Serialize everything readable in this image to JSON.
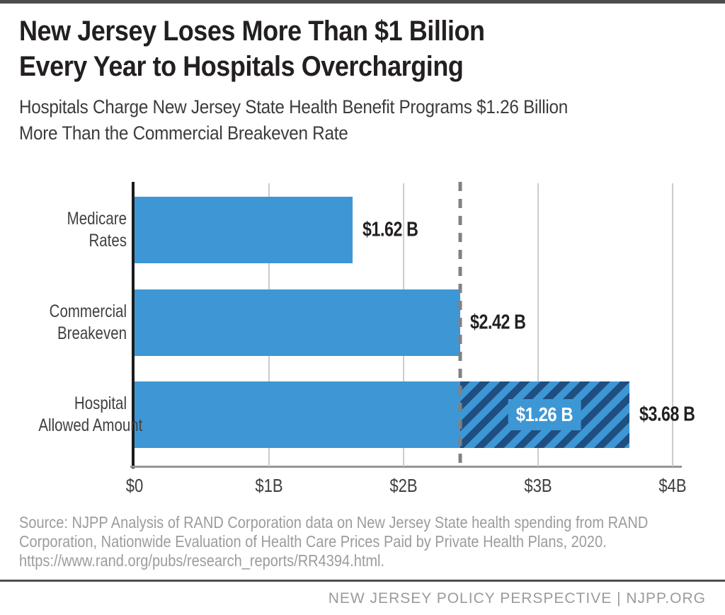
{
  "header": {
    "title_lines": [
      "New Jersey Loses More Than $1 Billion",
      "Every Year to Hospitals Overcharging"
    ],
    "subtitle_lines": [
      "Hospitals Charge New Jersey State Health Benefit Programs $1.26 Billion",
      "More Than the Commercial Breakeven Rate"
    ]
  },
  "chart_data": {
    "type": "bar",
    "orientation": "horizontal",
    "categories": [
      "Medicare Rates",
      "Commercial Breakeven",
      "Hospital Allowed Amount"
    ],
    "category_lines": [
      [
        "Medicare",
        "Rates"
      ],
      [
        "Commercial",
        "Breakeven"
      ],
      [
        "Hospital",
        "Allowed Amount"
      ]
    ],
    "values": [
      1.62,
      2.42,
      3.68
    ],
    "value_labels": [
      "$1.62 B",
      "$2.42 B",
      "$3.68 B"
    ],
    "unit": "billions USD",
    "xlim": [
      0,
      4
    ],
    "x_tick_values": [
      0,
      1,
      2,
      3,
      4
    ],
    "x_ticks": [
      "$0",
      "$1B",
      "$2B",
      "$3B",
      "$4B"
    ],
    "grid": true,
    "legend": "none",
    "reference_line": {
      "value": 2.42,
      "style": "dashed",
      "meaning": "Commercial Breakeven"
    },
    "overcharge_segment": {
      "from": 2.42,
      "to": 3.68,
      "label": "$1.26 B",
      "pattern": "diagonal-hatch"
    },
    "colors": {
      "bar": "#3e97d5",
      "hatch": "#1f4f81",
      "reference_line": "#7f8184",
      "gridline": "#cbcccd",
      "axis": "#1b1b1b",
      "overcharge_label_text": "#ffffff",
      "value_label_text": "#231f20"
    }
  },
  "source": {
    "lines": [
      "Source: NJPP Analysis of RAND Corporation data on New Jersey State health spending from RAND",
      "Corporation, Nationwide Evaluation of Health Care Prices Paid by Private Health Plans, 2020.",
      "https://www.rand.org/pubs/research_reports/RR4394.html."
    ]
  },
  "footer": {
    "text": "NEW JERSEY POLICY PERSPECTIVE | NJPP.ORG"
  }
}
